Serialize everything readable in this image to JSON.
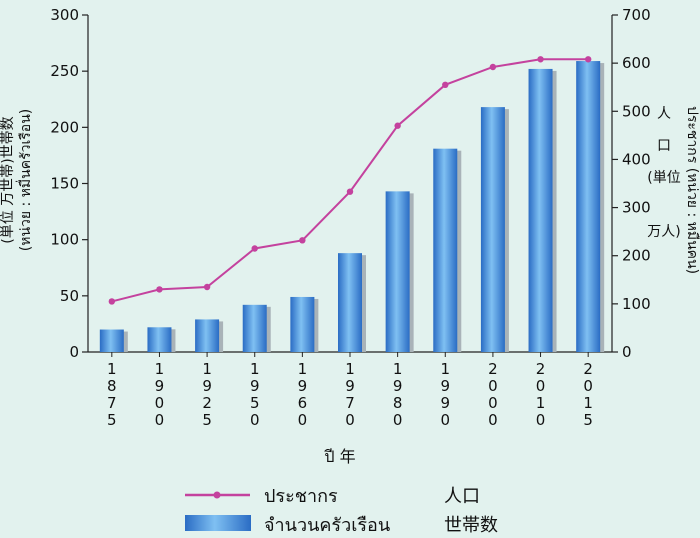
{
  "chart_data": {
    "type": "bar",
    "categories": [
      "1875",
      "1900",
      "1925",
      "1950",
      "1960",
      "1970",
      "1980",
      "1990",
      "2000",
      "2010",
      "2015"
    ],
    "category_label_chars": [
      [
        "1",
        "8",
        "7",
        "5"
      ],
      [
        "1",
        "9",
        "0",
        "0"
      ],
      [
        "1",
        "9",
        "2",
        "5"
      ],
      [
        "1",
        "9",
        "5",
        "0"
      ],
      [
        "1",
        "9",
        "6",
        "0"
      ],
      [
        "1",
        "9",
        "7",
        "0"
      ],
      [
        "1",
        "9",
        "8",
        "0"
      ],
      [
        "1",
        "9",
        "9",
        "0"
      ],
      [
        "2",
        "0",
        "0",
        "0"
      ],
      [
        "2",
        "0",
        "1",
        "0"
      ],
      [
        "2",
        "0",
        "1",
        "5"
      ]
    ],
    "series": [
      {
        "name": "จำนวนครัวเรือน",
        "name_ja": "世帯数",
        "type": "bar",
        "axis": "left",
        "color": "#3d7fd1",
        "values": [
          20,
          22,
          29,
          42,
          49,
          88,
          143,
          181,
          218,
          252,
          259
        ]
      },
      {
        "name": "ประชากร",
        "name_ja": "人口",
        "type": "line",
        "axis": "right",
        "color": "#c4429e",
        "values": [
          105,
          130,
          135,
          215,
          232,
          333,
          470,
          555,
          592,
          608,
          608
        ]
      }
    ],
    "y_left": {
      "ticks": [
        "0",
        "50",
        "100",
        "150",
        "200",
        "250",
        "300"
      ],
      "range": [
        0,
        300
      ],
      "label_line1": "(หน่วย : หมื่นครัวเรือน)",
      "label_line2": "(単位 万世帯)世帯数"
    },
    "y_right": {
      "ticks": [
        "0",
        "100",
        "200",
        "300",
        "400",
        "500",
        "600",
        "700"
      ],
      "range": [
        0,
        700
      ],
      "label_line1": "ประชากร (หน่วย : หมื่นคน)",
      "label_ja": [
        "人",
        "口",
        "(単位",
        "万人)"
      ]
    },
    "xlabel": "ปี 年",
    "grid": false,
    "legend_position": "bottom"
  },
  "legend": {
    "line_label": "ประชากร",
    "line_label_ja": "人口",
    "bar_label": "จำนวนครัวเรือน",
    "bar_label_ja": "世帯数"
  },
  "colors": {
    "background": "#e2f2ee",
    "bar": "#3d7fd1",
    "bar_shadow": "#a9b3b8",
    "line": "#c4429e"
  }
}
